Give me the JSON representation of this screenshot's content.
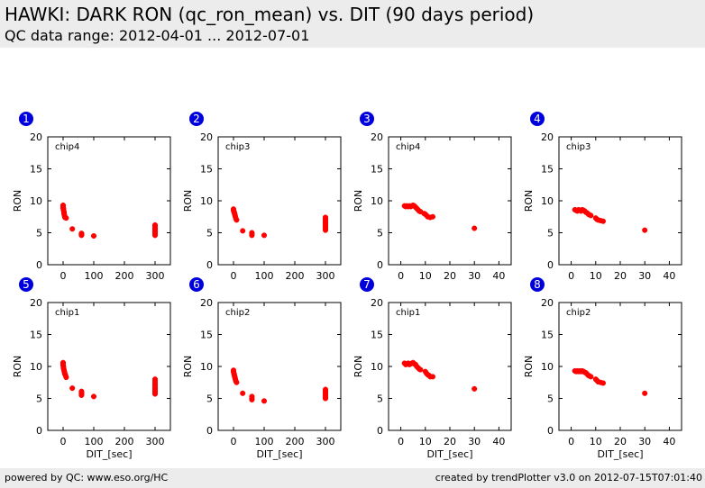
{
  "header": {
    "title": "HAWKI: DARK RON (qc_ron_mean) vs. DIT (90 days period)",
    "subtitle": "QC data range: 2012-04-01 ... 2012-07-01"
  },
  "footer": {
    "left": "powered by QC: www.eso.org/HC",
    "right": "created by trendPlotter v3.0 on 2012-07-15T07:01:40"
  },
  "colors": {
    "points": "#ff0000",
    "badge": "#0000dd",
    "header_bg": "#ececec"
  },
  "chart_data": [
    {
      "type": "scatter",
      "number": "1",
      "label": "chip4",
      "ylabel": "RON",
      "xlabel": "",
      "xlim": [
        -50,
        350
      ],
      "ylim": [
        0,
        20
      ],
      "xticks": [
        0,
        100,
        200,
        300
      ],
      "yticks": [
        0,
        5,
        10,
        15,
        20
      ],
      "x": [
        0,
        0,
        0,
        1,
        1,
        2,
        3,
        3,
        4,
        5,
        6,
        10,
        30,
        60,
        60,
        60,
        60,
        100,
        300,
        300,
        300,
        300,
        300,
        300,
        300,
        300,
        300,
        300,
        300,
        300,
        300,
        300
      ],
      "y": [
        9.3,
        9.1,
        8.9,
        8.8,
        8.6,
        8.4,
        8.2,
        8.0,
        7.8,
        7.6,
        7.4,
        7.3,
        5.6,
        4.9,
        4.8,
        4.7,
        4.6,
        4.5,
        6.2,
        6.0,
        5.8,
        5.6,
        5.5,
        5.4,
        5.3,
        5.2,
        5.1,
        5.0,
        4.9,
        4.8,
        4.7,
        4.6
      ]
    },
    {
      "type": "scatter",
      "number": "2",
      "label": "chip3",
      "ylabel": "RON",
      "xlabel": "",
      "xlim": [
        -50,
        350
      ],
      "ylim": [
        0,
        20
      ],
      "xticks": [
        0,
        100,
        200,
        300
      ],
      "yticks": [
        0,
        5,
        10,
        15,
        20
      ],
      "x": [
        0,
        0,
        1,
        2,
        3,
        4,
        5,
        6,
        8,
        10,
        30,
        60,
        60,
        60,
        100,
        300,
        300,
        300,
        300,
        300,
        300,
        300,
        300,
        300,
        300,
        300,
        300,
        300,
        300,
        300
      ],
      "y": [
        8.7,
        8.5,
        8.4,
        8.2,
        8.1,
        7.9,
        7.7,
        7.5,
        7.2,
        7.0,
        5.3,
        5.0,
        4.8,
        4.6,
        4.6,
        7.4,
        7.2,
        7.0,
        6.8,
        6.7,
        6.5,
        6.4,
        6.3,
        6.2,
        6.1,
        6.0,
        5.9,
        5.8,
        5.6,
        5.4
      ]
    },
    {
      "type": "scatter",
      "number": "3",
      "label": "chip4",
      "ylabel": "RON",
      "xlabel": "",
      "xlim": [
        -5,
        45
      ],
      "ylim": [
        0,
        20
      ],
      "xticks": [
        0,
        10,
        20,
        30,
        40
      ],
      "yticks": [
        0,
        5,
        10,
        15,
        20
      ],
      "x": [
        1.5,
        2,
        2.5,
        3,
        3.5,
        4,
        4.5,
        5,
        5.5,
        6,
        6.5,
        7,
        7.5,
        8,
        9.5,
        10,
        10.5,
        11,
        12,
        13,
        30
      ],
      "y": [
        9.2,
        9.1,
        9.2,
        9.1,
        9.2,
        9.1,
        9.2,
        9.3,
        9.2,
        9.0,
        8.8,
        8.6,
        8.4,
        8.3,
        8.0,
        7.9,
        7.7,
        7.5,
        7.4,
        7.5,
        5.7
      ]
    },
    {
      "type": "scatter",
      "number": "4",
      "label": "chip3",
      "ylabel": "RON",
      "xlabel": "",
      "xlim": [
        -5,
        45
      ],
      "ylim": [
        0,
        20
      ],
      "xticks": [
        0,
        10,
        20,
        30,
        40
      ],
      "yticks": [
        0,
        5,
        10,
        15,
        20
      ],
      "x": [
        1.5,
        2,
        2.5,
        3,
        3.5,
        4,
        4.5,
        5,
        5.5,
        6,
        6.5,
        7,
        7.5,
        8,
        10,
        10.5,
        11,
        12,
        13,
        30
      ],
      "y": [
        8.6,
        8.5,
        8.4,
        8.6,
        8.5,
        8.4,
        8.6,
        8.5,
        8.4,
        8.2,
        8.1,
        7.9,
        7.8,
        7.7,
        7.3,
        7.1,
        7.0,
        6.9,
        6.8,
        5.4
      ]
    },
    {
      "type": "scatter",
      "number": "5",
      "label": "chip1",
      "ylabel": "RON",
      "xlabel": "DIT_[sec]",
      "xlim": [
        -50,
        350
      ],
      "ylim": [
        0,
        20
      ],
      "xticks": [
        0,
        100,
        200,
        300
      ],
      "yticks": [
        0,
        5,
        10,
        15,
        20
      ],
      "x": [
        0,
        0,
        0,
        1,
        1,
        2,
        3,
        4,
        5,
        6,
        8,
        10,
        30,
        60,
        60,
        60,
        60,
        100,
        300,
        300,
        300,
        300,
        300,
        300,
        300,
        300,
        300,
        300,
        300,
        300,
        300,
        300
      ],
      "y": [
        10.6,
        10.4,
        10.2,
        10.0,
        9.8,
        9.6,
        9.4,
        9.2,
        9.0,
        8.8,
        8.6,
        8.3,
        6.6,
        6.1,
        5.9,
        5.7,
        5.5,
        5.3,
        8.0,
        7.7,
        7.4,
        7.2,
        7.0,
        6.8,
        6.6,
        6.5,
        6.4,
        6.3,
        6.2,
        6.1,
        5.9,
        5.7
      ]
    },
    {
      "type": "scatter",
      "number": "6",
      "label": "chip2",
      "ylabel": "RON",
      "xlabel": "DIT_[sec]",
      "xlim": [
        -50,
        350
      ],
      "ylim": [
        0,
        20
      ],
      "xticks": [
        0,
        100,
        200,
        300
      ],
      "yticks": [
        0,
        5,
        10,
        15,
        20
      ],
      "x": [
        0,
        0,
        1,
        2,
        3,
        4,
        5,
        6,
        8,
        10,
        30,
        60,
        60,
        60,
        100,
        300,
        300,
        300,
        300,
        300,
        300,
        300,
        300,
        300,
        300,
        300,
        300,
        300
      ],
      "y": [
        9.4,
        9.2,
        9.0,
        8.8,
        8.6,
        8.4,
        8.2,
        8.0,
        7.7,
        7.5,
        5.8,
        5.3,
        5.0,
        4.8,
        4.6,
        6.4,
        6.2,
        6.0,
        5.9,
        5.8,
        5.7,
        5.6,
        5.5,
        5.4,
        5.3,
        5.2,
        5.1,
        5.0
      ]
    },
    {
      "type": "scatter",
      "number": "7",
      "label": "chip1",
      "ylabel": "RON",
      "xlabel": "DIT_[sec]",
      "xlim": [
        -5,
        45
      ],
      "ylim": [
        0,
        20
      ],
      "xticks": [
        0,
        10,
        20,
        30,
        40
      ],
      "yticks": [
        0,
        5,
        10,
        15,
        20
      ],
      "x": [
        1.5,
        2,
        2.5,
        3,
        3.5,
        4,
        4.5,
        5,
        5.5,
        6,
        6.5,
        7,
        7.5,
        8,
        10,
        10.5,
        11,
        11.5,
        12,
        13,
        30
      ],
      "y": [
        10.5,
        10.3,
        10.4,
        10.5,
        10.3,
        10.4,
        10.5,
        10.6,
        10.4,
        10.3,
        10.0,
        9.8,
        9.6,
        9.5,
        9.2,
        8.9,
        8.7,
        8.6,
        8.4,
        8.4,
        6.5
      ]
    },
    {
      "type": "scatter",
      "number": "8",
      "label": "chip2",
      "ylabel": "RON",
      "xlabel": "DIT_[sec]",
      "xlim": [
        -5,
        45
      ],
      "ylim": [
        0,
        20
      ],
      "xticks": [
        0,
        10,
        20,
        30,
        40
      ],
      "yticks": [
        0,
        5,
        10,
        15,
        20
      ],
      "x": [
        1.5,
        2,
        2.5,
        3,
        3.5,
        4,
        4.5,
        5,
        5.5,
        6,
        6.5,
        7,
        7.5,
        8,
        10,
        10.5,
        11,
        12,
        13,
        30
      ],
      "y": [
        9.3,
        9.2,
        9.3,
        9.2,
        9.3,
        9.2,
        9.3,
        9.2,
        9.1,
        9.0,
        8.8,
        8.6,
        8.5,
        8.4,
        8.0,
        7.8,
        7.6,
        7.5,
        7.4,
        5.8
      ]
    }
  ]
}
